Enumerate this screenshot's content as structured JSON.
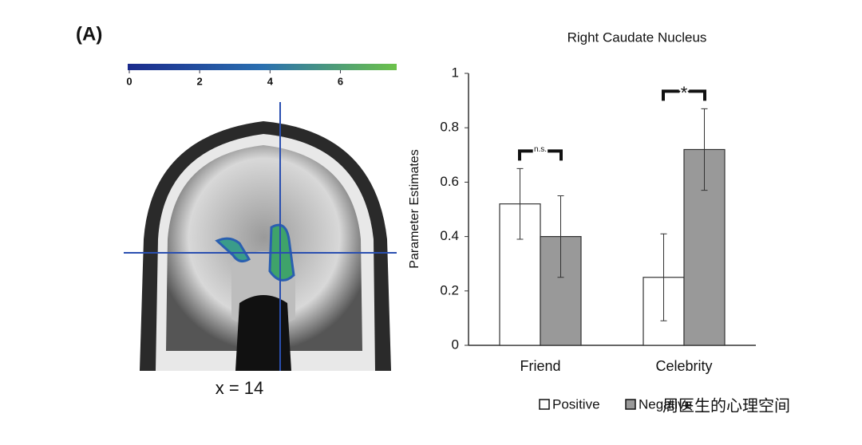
{
  "panel_label": "(A)",
  "colorbar": {
    "lim": [
      0,
      7.6
    ],
    "ticks": [
      0,
      2,
      4,
      6
    ]
  },
  "brain_caption": "x = 14",
  "watermark": "周医生的心理空间",
  "chart_data": {
    "type": "bar",
    "title": "Right Caudate Nucleus",
    "y_label": "Parameter Estimates",
    "categories": [
      "Friend",
      "Celebrity"
    ],
    "series": [
      {
        "name": "Positive",
        "color": "#ffffff",
        "values": [
          0.52,
          0.25
        ],
        "errors": [
          0.13,
          0.16
        ]
      },
      {
        "name": "Negative",
        "color": "#999999",
        "values": [
          0.4,
          0.72
        ],
        "errors": [
          0.15,
          0.15
        ]
      }
    ],
    "annotations": [
      "n.s.",
      "*"
    ],
    "ylim": [
      0,
      1
    ],
    "yticks": [
      0,
      0.2,
      0.4,
      0.6,
      0.8,
      1
    ],
    "grid": false
  }
}
